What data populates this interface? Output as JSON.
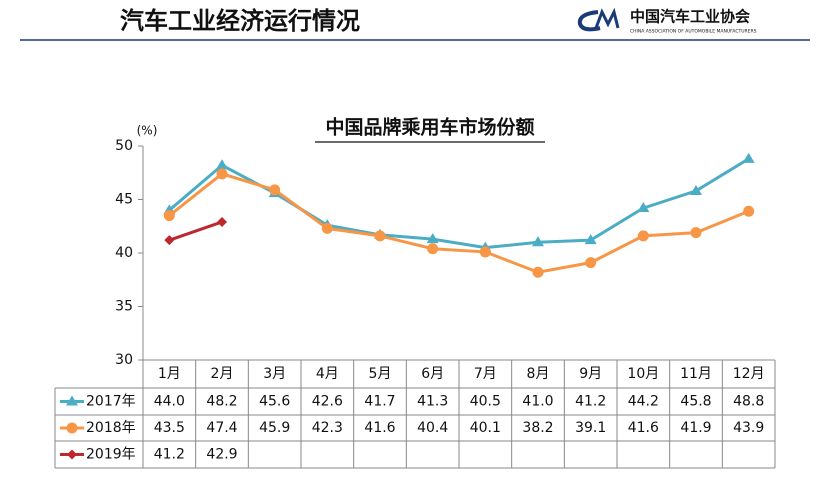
{
  "header": {
    "title": "汽车工业经济运行情况",
    "logo_text": "中国汽车工业协会",
    "logo_subtitle": "CHINA ASSOCIATION OF AUTOMOBILE MANUFACTURERS"
  },
  "chart_data": {
    "type": "line",
    "title": "中国品牌乘用车市场份额",
    "y_label": "(%)",
    "categories": [
      "1月",
      "2月",
      "3月",
      "4月",
      "5月",
      "6月",
      "7月",
      "8月",
      "9月",
      "10月",
      "11月",
      "12月"
    ],
    "ylim": [
      30,
      50
    ],
    "yticks": [
      30,
      35,
      40,
      45,
      50
    ],
    "series": [
      {
        "name": "2017年",
        "color": "#4bacc6",
        "marker": "triangle",
        "values": [
          44.0,
          48.2,
          45.6,
          42.6,
          41.7,
          41.3,
          40.5,
          41.0,
          41.2,
          44.2,
          45.8,
          48.8
        ],
        "value_labels": [
          "44.0",
          "48.2",
          "45.6",
          "42.6",
          "41.7",
          "41.3",
          "40.5",
          "41.0",
          "41.2",
          "44.2",
          "45.8",
          "48.8"
        ]
      },
      {
        "name": "2018年",
        "color": "#f79646",
        "marker": "circle",
        "values": [
          43.5,
          47.4,
          45.9,
          42.3,
          41.6,
          40.4,
          40.1,
          38.2,
          39.1,
          41.6,
          41.9,
          43.9
        ],
        "value_labels": [
          "43.5",
          "47.4",
          "45.9",
          "42.3",
          "41.6",
          "40.4",
          "40.1",
          "38.2",
          "39.1",
          "41.6",
          "41.9",
          "43.9"
        ]
      },
      {
        "name": "2019年",
        "color": "#c0272d",
        "marker": "diamond",
        "values": [
          41.2,
          42.9,
          null,
          null,
          null,
          null,
          null,
          null,
          null,
          null,
          null,
          null
        ],
        "value_labels": [
          "41.2",
          "42.9",
          null,
          null,
          null,
          null,
          null,
          null,
          null,
          null,
          null,
          null
        ]
      }
    ]
  }
}
